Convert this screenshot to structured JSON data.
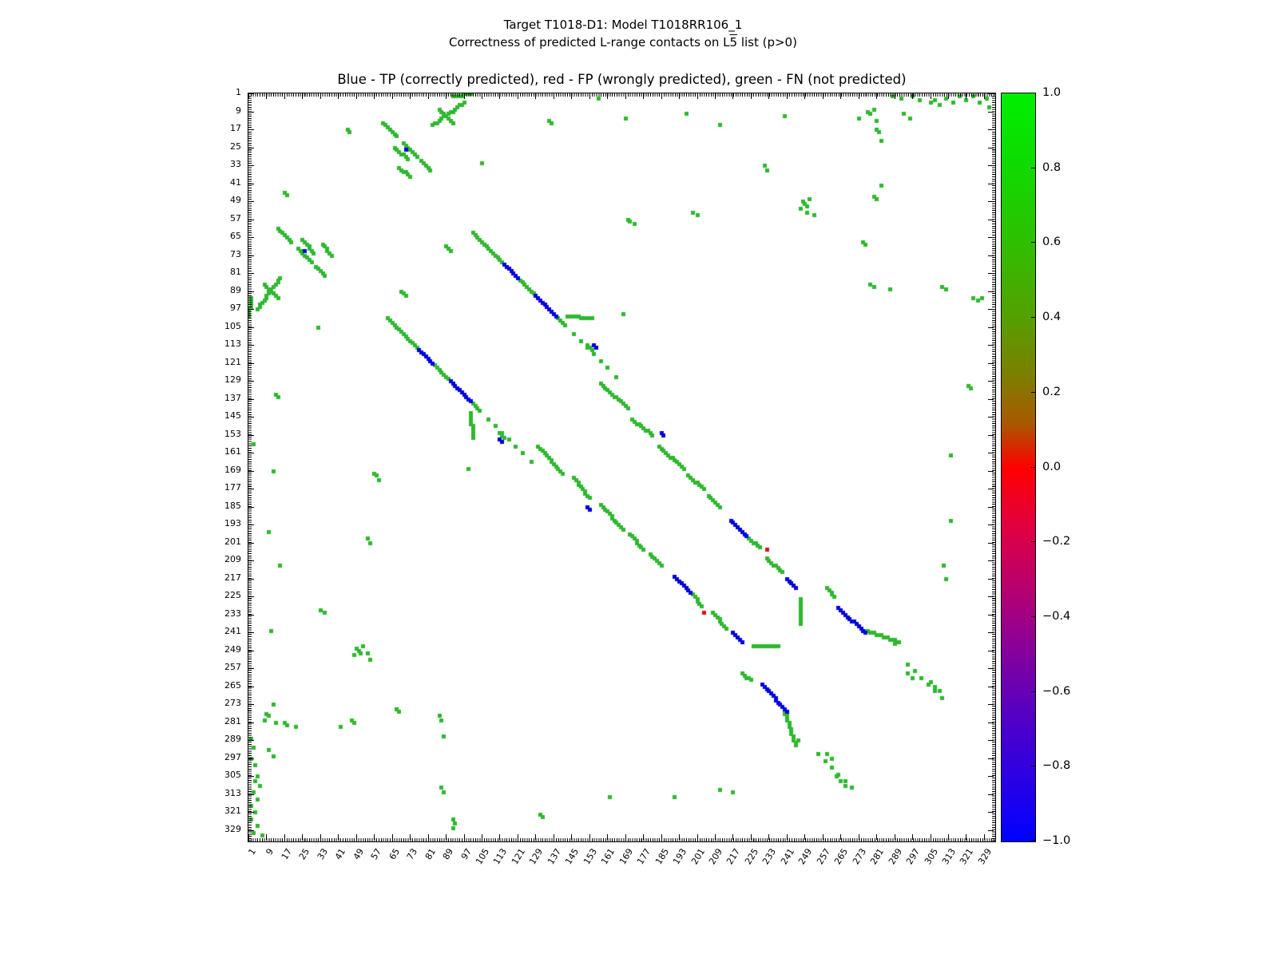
{
  "header": {
    "title_line1": "Target T1018-D1: Model T1018RR106_1",
    "title_line2_prefix": "Correctness of predicted L-range contacts on L",
    "title_line2_bar": "5",
    "title_line2_suffix": " list (p>0)"
  },
  "chart_data": {
    "type": "scatter",
    "title": "Target T1018-D1: Model T1018RR106_1",
    "subtitle": "Correctness of predicted L-range contacts on L5 list (p>0)",
    "plot_title": "Blue - TP (correctly predicted), red - FP (wrongly predicted), green - FN (not predicted)",
    "xlabel": "",
    "ylabel": "",
    "xlim": [
      1,
      334
    ],
    "ylim": [
      1,
      334
    ],
    "y_inverted": true,
    "grid": false,
    "symmetric": true,
    "marker_px": 5,
    "ticks": [
      1,
      9,
      17,
      25,
      33,
      41,
      49,
      57,
      65,
      73,
      81,
      89,
      97,
      105,
      113,
      121,
      129,
      137,
      145,
      153,
      161,
      169,
      177,
      185,
      193,
      201,
      209,
      217,
      225,
      233,
      241,
      249,
      257,
      265,
      273,
      281,
      289,
      297,
      305,
      313,
      321,
      329
    ],
    "classes": {
      "TP": {
        "label": "TP (correctly predicted)",
        "color": "#0000dd"
      },
      "FP": {
        "label": "FP (wrongly predicted)",
        "color": "#dd1111"
      },
      "FN": {
        "label": "FN (not predicted)",
        "color": "#2eb82e"
      }
    },
    "segments": [
      [
        101,
        63,
        114,
        76,
        "FN",
        1
      ],
      [
        115,
        77,
        121,
        83,
        "TP",
        1
      ],
      [
        122,
        84,
        128,
        90,
        "FN",
        1
      ],
      [
        129,
        91,
        138,
        100,
        "TP",
        1
      ],
      [
        139,
        101,
        142,
        104,
        "FN",
        1
      ],
      [
        143,
        100,
        154,
        101,
        "FN",
        1
      ],
      [
        146,
        108,
        161,
        123,
        "FN",
        3
      ],
      [
        158,
        130,
        170,
        141,
        "FN",
        1
      ],
      [
        172,
        146,
        181,
        153,
        "FN",
        1
      ],
      [
        184,
        158,
        195,
        168,
        "FN",
        1
      ],
      [
        197,
        171,
        204,
        177,
        "FN",
        1
      ],
      [
        206,
        180,
        211,
        185,
        "FN",
        1
      ],
      [
        216,
        191,
        223,
        198,
        "TP",
        1
      ],
      [
        224,
        199,
        229,
        203,
        "FN",
        1
      ],
      [
        232,
        208,
        239,
        214,
        "FN",
        1
      ],
      [
        241,
        217,
        245,
        221,
        "TP",
        1
      ],
      [
        247,
        226,
        247,
        237,
        "FN",
        1
      ],
      [
        259,
        221,
        262,
        225,
        "FN",
        1
      ],
      [
        264,
        230,
        276,
        241,
        "TP",
        1
      ],
      [
        276,
        240,
        291,
        245,
        "FN",
        1
      ],
      [
        295,
        255,
        310,
        270,
        "FN",
        3
      ],
      [
        61,
        14,
        67,
        20,
        "FN",
        1
      ],
      [
        70,
        23,
        76,
        29,
        "FN",
        1
      ],
      [
        78,
        31,
        82,
        35,
        "FN",
        1
      ],
      [
        66,
        25,
        72,
        30,
        "FN",
        1
      ],
      [
        68,
        34,
        73,
        38,
        "FN",
        1
      ],
      [
        83,
        15,
        97,
        5,
        "FN",
        1
      ],
      [
        92,
        2,
        100,
        1,
        "FN",
        1
      ],
      [
        86,
        8,
        92,
        14,
        "FN",
        1
      ],
      [
        89,
        69,
        91,
        71,
        "FN",
        1
      ],
      [
        152,
        113,
        154,
        115,
        "FN",
        1
      ],
      [
        155,
        113,
        156,
        114,
        "TP",
        1
      ],
      [
        185,
        152,
        186,
        153,
        "TP",
        1
      ]
    ],
    "points": [
      [
        45,
        17,
        "FN"
      ],
      [
        46,
        18,
        "FN"
      ],
      [
        105,
        32,
        "FN"
      ],
      [
        135,
        13,
        "FN"
      ],
      [
        136,
        14,
        "FN"
      ],
      [
        169,
        12,
        "FN"
      ],
      [
        196,
        10,
        "FN"
      ],
      [
        211,
        15,
        "FN"
      ],
      [
        231,
        33,
        "FN"
      ],
      [
        232,
        35,
        "FN"
      ],
      [
        240,
        11,
        "FN"
      ],
      [
        247,
        52,
        "FN"
      ],
      [
        248,
        49,
        "FN"
      ],
      [
        249,
        50,
        "FN"
      ],
      [
        250,
        51,
        "FN"
      ],
      [
        251,
        48,
        "FN"
      ],
      [
        250,
        54,
        "FN"
      ],
      [
        253,
        55,
        "FN"
      ],
      [
        275,
        67,
        "FN"
      ],
      [
        276,
        68,
        "FN"
      ],
      [
        278,
        86,
        "FN"
      ],
      [
        280,
        87,
        "FN"
      ],
      [
        287,
        88,
        "FN"
      ],
      [
        310,
        87,
        "FN"
      ],
      [
        312,
        88,
        "FN"
      ],
      [
        324,
        92,
        "FN"
      ],
      [
        326,
        93,
        "FN"
      ],
      [
        328,
        92,
        "FN"
      ],
      [
        273,
        12,
        "FN"
      ],
      [
        277,
        9,
        "FN"
      ],
      [
        278,
        10,
        "FN"
      ],
      [
        280,
        8,
        "FN"
      ],
      [
        281,
        13,
        "FN"
      ],
      [
        281,
        17,
        "FN"
      ],
      [
        282,
        18,
        "FN"
      ],
      [
        283,
        22,
        "FN"
      ],
      [
        283,
        42,
        "FN"
      ],
      [
        280,
        47,
        "FN"
      ],
      [
        281,
        48,
        "FN"
      ],
      [
        293,
        10,
        "FN"
      ],
      [
        296,
        12,
        "FN"
      ],
      [
        305,
        5,
        "FN"
      ],
      [
        307,
        4,
        "FN"
      ],
      [
        309,
        6,
        "FN"
      ],
      [
        312,
        3,
        "FN"
      ],
      [
        315,
        5,
        "FN"
      ],
      [
        318,
        2,
        "FN"
      ],
      [
        321,
        4,
        "FN"
      ],
      [
        324,
        2,
        "FN"
      ],
      [
        327,
        5,
        "FN"
      ],
      [
        330,
        3,
        "FN"
      ],
      [
        331,
        7,
        "FN"
      ],
      [
        288,
        2,
        "FN"
      ],
      [
        292,
        3,
        "FN"
      ],
      [
        297,
        2,
        "FN"
      ],
      [
        300,
        4,
        "FN"
      ],
      [
        157,
        3,
        "FN"
      ],
      [
        170,
        57,
        "FN"
      ],
      [
        171,
        58,
        "FN"
      ],
      [
        173,
        59,
        "FN"
      ],
      [
        199,
        54,
        "FN"
      ],
      [
        201,
        55,
        "FN"
      ],
      [
        287,
        244,
        "FN"
      ],
      [
        289,
        246,
        "FN"
      ],
      [
        295,
        259,
        "FN"
      ],
      [
        297,
        261,
        "FN"
      ],
      [
        305,
        263,
        "FN"
      ],
      [
        307,
        265,
        "FN"
      ],
      [
        309,
        267,
        "FN"
      ],
      [
        314,
        191,
        "FN"
      ],
      [
        312,
        217,
        "FN"
      ],
      [
        322,
        131,
        "FN"
      ],
      [
        323,
        132,
        "FN"
      ],
      [
        314,
        162,
        "FN"
      ],
      [
        168,
        99,
        "FN"
      ],
      [
        165,
        127,
        "FN"
      ],
      [
        311,
        211,
        "FN"
      ],
      [
        71,
        26,
        "TP"
      ],
      [
        232,
        204,
        "FP"
      ]
    ],
    "colorbar": {
      "ticks": [
        "1.0",
        "0.8",
        "0.6",
        "0.4",
        "0.2",
        "0.0",
        "−0.2",
        "−0.4",
        "−0.6",
        "−0.8",
        "−1.0"
      ],
      "tick_values": [
        1.0,
        0.8,
        0.6,
        0.4,
        0.2,
        0.0,
        -0.2,
        -0.4,
        -0.6,
        -0.8,
        -1.0
      ],
      "stops": [
        [
          "#00ef00",
          0
        ],
        [
          "#10d900",
          10
        ],
        [
          "#2fbf00",
          20
        ],
        [
          "#55a000",
          30
        ],
        [
          "#7f7d00",
          38
        ],
        [
          "#a85a00",
          44
        ],
        [
          "#ff0000",
          50
        ],
        [
          "#e00040",
          58
        ],
        [
          "#b8006e",
          66
        ],
        [
          "#8a0098",
          74
        ],
        [
          "#5a00c0",
          82
        ],
        [
          "#2d00e2",
          91
        ],
        [
          "#0000ff",
          100
        ]
      ],
      "range": [
        -1.0,
        1.0
      ]
    }
  }
}
